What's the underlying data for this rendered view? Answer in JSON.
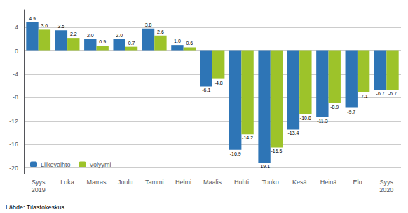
{
  "chart_data": {
    "type": "bar",
    "categories": [
      "Syys\n2019",
      "Loka",
      "Marras",
      "Joulu",
      "Tammi",
      "Helmi",
      "Maalis",
      "Huhti",
      "Touko",
      "Kesä",
      "Heinä",
      "Elo",
      "Syys\n2020"
    ],
    "series": [
      {
        "name": "Liikevaihto",
        "color": "#2E75B6",
        "values": [
          4.9,
          3.5,
          2.0,
          2.0,
          3.8,
          1.0,
          -6.1,
          -16.9,
          -19.1,
          -13.4,
          -11.3,
          -9.7,
          -6.7
        ],
        "value_labels": [
          "4.9",
          "3.5",
          "2.0",
          "2.0",
          "3.8",
          "1.0",
          "-6.1",
          "-16.9",
          "-19.1",
          "-13.4",
          "-11.3",
          "-9.7",
          "-6.7"
        ]
      },
      {
        "name": "Volyymi",
        "color": "#9DC32A",
        "values": [
          3.6,
          2.2,
          0.9,
          0.7,
          2.6,
          0.6,
          -4.8,
          -14.2,
          -16.5,
          -10.8,
          -8.9,
          -7.1,
          -6.7
        ],
        "value_labels": [
          "3.6",
          "2.2",
          "0.9",
          "0.7",
          "2.6",
          "0.6",
          "-4.8",
          "-14.2",
          "-16.5",
          "-10.8",
          "-8.9",
          "-7.1",
          "-6.7"
        ]
      }
    ],
    "ylim": [
      -21,
      7
    ],
    "yticks": [
      -20,
      -16,
      -12,
      -8,
      -4,
      0,
      4
    ],
    "grid": true,
    "legend": "lower left",
    "data_labels": true,
    "annotations": [
      "Lähde: Tilastokeskus"
    ]
  }
}
